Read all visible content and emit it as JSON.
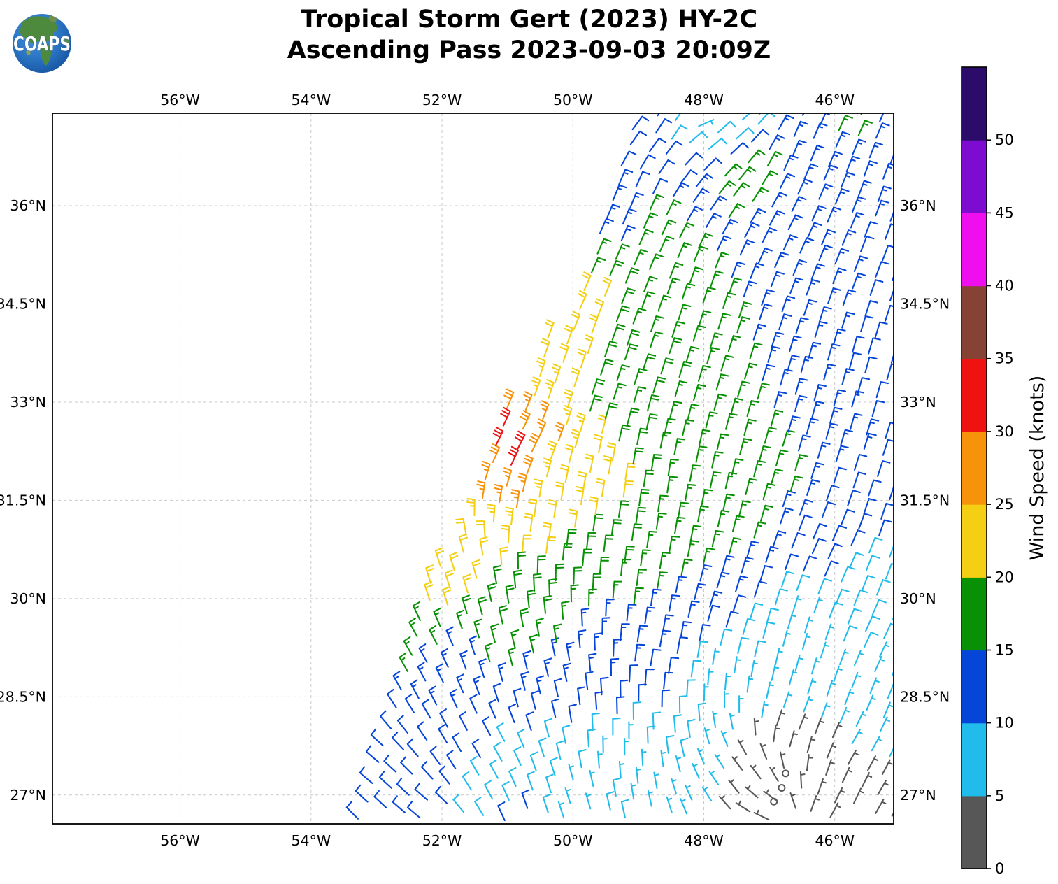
{
  "header": {
    "title_line1": "Tropical Storm Gert (2023) HY-2C",
    "title_line2": "Ascending Pass 2023-09-03 20:09Z",
    "logo_text": "COAPS"
  },
  "chart_data": {
    "type": "wind_barb_map",
    "title": "Tropical Storm Gert (2023) HY-2C Ascending Pass 2023-09-03 20:09Z",
    "axes": {
      "lon_range": [
        -57.95,
        -45.1
      ],
      "lat_range": [
        26.56,
        37.41
      ],
      "lon_gridlines": [
        -56,
        -54,
        -52,
        -50,
        -48,
        -46
      ],
      "lon_tick_labels": [
        "56°W",
        "54°W",
        "52°W",
        "50°W",
        "48°W",
        "46°W"
      ],
      "lat_gridlines": [
        36,
        34.5,
        33,
        31.5,
        30,
        28.5,
        27
      ],
      "lat_tick_labels": [
        "36°N",
        "34.5°N",
        "33°N",
        "31.5°N",
        "30°N",
        "28.5°N",
        "27°N"
      ],
      "grid": true,
      "grid_style": "dashed-lightgray"
    },
    "colorbar": {
      "label": "Wind Speed (knots)",
      "orientation": "vertical-right",
      "tick_values": [
        0,
        5,
        10,
        15,
        20,
        25,
        30,
        35,
        40,
        45,
        50
      ],
      "bin_colors": [
        "#575757",
        "#22bcec",
        "#0545d8",
        "#089104",
        "#f4cf14",
        "#f7930b",
        "#ee1211",
        "#874236",
        "#ee0eee",
        "#7d0bd0",
        "#2c0c6a"
      ]
    },
    "barb_conventions": {
      "full_barb_kt": 10,
      "half_barb_kt": 5,
      "calm_below_kt": 2.5
    },
    "swath": {
      "left_edge_lat_lon": [
        [
          26.5,
          -53.5
        ],
        [
          27.5,
          -53.12
        ],
        [
          28.5,
          -52.76
        ],
        [
          29.2,
          -52.5
        ],
        [
          30.0,
          -52.22
        ],
        [
          30.8,
          -51.92
        ],
        [
          31.5,
          -51.62
        ],
        [
          32.3,
          -51.22
        ],
        [
          33.0,
          -50.97
        ],
        [
          33.8,
          -50.47
        ],
        [
          34.55,
          -50.07
        ],
        [
          35.2,
          -49.7
        ],
        [
          36.0,
          -49.45
        ],
        [
          36.6,
          -49.25
        ],
        [
          37.5,
          -49.0
        ]
      ],
      "origin_lon_lat": [
        -53.62,
        26.45
      ],
      "along_track_step_deg": [
        0.0855,
        0.277
      ],
      "cross_track_step_deg": [
        0.2865,
        -0.084
      ],
      "n_along": 47,
      "n_cross": 29
    },
    "wind_speed_samples_kt": [
      [
        -50.88,
        32.15,
        32
      ],
      [
        -50.95,
        32.55,
        31
      ],
      [
        -50.75,
        32.9,
        27
      ],
      [
        -51.05,
        31.7,
        27
      ],
      [
        -50.5,
        32.4,
        26
      ],
      [
        -50.15,
        33.8,
        22
      ],
      [
        -49.65,
        34.45,
        22
      ],
      [
        -50.45,
        33.25,
        23
      ],
      [
        -50.1,
        31.95,
        22
      ],
      [
        -51.3,
        30.9,
        22
      ],
      [
        -52.05,
        30.15,
        21
      ],
      [
        -50.45,
        31.15,
        21
      ],
      [
        -52.5,
        29.3,
        16
      ],
      [
        -49.35,
        33.1,
        17
      ],
      [
        -49.0,
        34.25,
        17
      ],
      [
        -48.9,
        35.7,
        17
      ],
      [
        -49.9,
        35.3,
        16
      ],
      [
        -47.3,
        36.3,
        17
      ],
      [
        -45.9,
        37.2,
        16
      ],
      [
        -49.05,
        36.75,
        12
      ],
      [
        -49.3,
        35.85,
        13
      ],
      [
        -48.75,
        36.4,
        12
      ],
      [
        -48.9,
        37.1,
        11
      ],
      [
        -45.4,
        36.5,
        13
      ],
      [
        -45.2,
        35.2,
        12
      ],
      [
        -46.4,
        34.5,
        14
      ],
      [
        -45.45,
        34.0,
        12
      ],
      [
        -45.3,
        33.0,
        12
      ],
      [
        -48.3,
        32.4,
        17
      ],
      [
        -47.1,
        31.9,
        16
      ],
      [
        -46.2,
        32.6,
        14
      ],
      [
        -45.9,
        31.1,
        11
      ],
      [
        -45.2,
        31.5,
        11
      ],
      [
        -47.7,
        31.2,
        16
      ],
      [
        -49.75,
        30.55,
        18
      ],
      [
        -48.7,
        29.8,
        15
      ],
      [
        -49.4,
        29.1,
        13
      ],
      [
        -48.95,
        28.6,
        11
      ],
      [
        -50.9,
        29.9,
        18
      ],
      [
        -51.9,
        28.9,
        14
      ],
      [
        -52.6,
        28.0,
        12
      ],
      [
        -53.25,
        26.8,
        12
      ],
      [
        -51.6,
        27.7,
        11
      ],
      [
        -50.6,
        26.65,
        11
      ],
      [
        -51.25,
        27.35,
        8
      ],
      [
        -50.1,
        26.9,
        7
      ],
      [
        -49.2,
        27.6,
        7
      ],
      [
        -48.3,
        26.8,
        7
      ],
      [
        -47.7,
        28.7,
        7
      ],
      [
        -46.5,
        29.4,
        7
      ],
      [
        -45.3,
        28.5,
        7
      ],
      [
        -45.2,
        30.3,
        8
      ],
      [
        -46.75,
        27.3,
        3
      ],
      [
        -47.0,
        26.9,
        3
      ],
      [
        -46.35,
        26.75,
        4
      ],
      [
        -46.55,
        27.6,
        4
      ],
      [
        -45.55,
        26.62,
        4
      ],
      [
        -48.15,
        37.3,
        7
      ],
      [
        -47.7,
        37.25,
        8
      ],
      [
        -46.85,
        35.9,
        13
      ],
      [
        -46.15,
        36.9,
        13
      ]
    ],
    "wind_direction_samples_deg": [
      [
        -48.5,
        37.2,
        30
      ],
      [
        -48.15,
        37.32,
        70
      ],
      [
        -47.75,
        37.2,
        48
      ],
      [
        -46.5,
        36.8,
        22
      ],
      [
        -45.3,
        36.2,
        20
      ],
      [
        -49.2,
        36.0,
        22
      ],
      [
        -50.1,
        34.6,
        24
      ],
      [
        -50.9,
        32.3,
        27
      ],
      [
        -49.7,
        33.4,
        18
      ],
      [
        -48.0,
        34.2,
        17
      ],
      [
        -46.0,
        33.2,
        15
      ],
      [
        -45.2,
        31.6,
        18
      ],
      [
        -49.0,
        31.6,
        8
      ],
      [
        -50.5,
        31.2,
        8
      ],
      [
        -51.9,
        30.4,
        -18
      ],
      [
        -52.5,
        29.2,
        -30
      ],
      [
        -53.1,
        27.4,
        -50
      ],
      [
        -52.3,
        26.7,
        -50
      ],
      [
        -51.3,
        27.6,
        -30
      ],
      [
        -50.6,
        28.7,
        -14
      ],
      [
        -50.2,
        26.8,
        -18
      ],
      [
        -49.3,
        27.8,
        0
      ],
      [
        -48.6,
        29.2,
        10
      ],
      [
        -47.6,
        29.8,
        18
      ],
      [
        -46.1,
        30.6,
        24
      ],
      [
        -45.3,
        29.3,
        25
      ],
      [
        -47.35,
        27.25,
        -38
      ],
      [
        -46.6,
        28.05,
        22
      ],
      [
        -45.7,
        27.6,
        30
      ],
      [
        -47.05,
        26.7,
        -65
      ],
      [
        -46.1,
        26.7,
        28
      ],
      [
        -45.25,
        26.9,
        30
      ]
    ],
    "calm_circles_lon_lat": [
      [
        -46.75,
        27.33
      ],
      [
        -46.81,
        27.11
      ],
      [
        -46.93,
        26.9
      ]
    ]
  }
}
